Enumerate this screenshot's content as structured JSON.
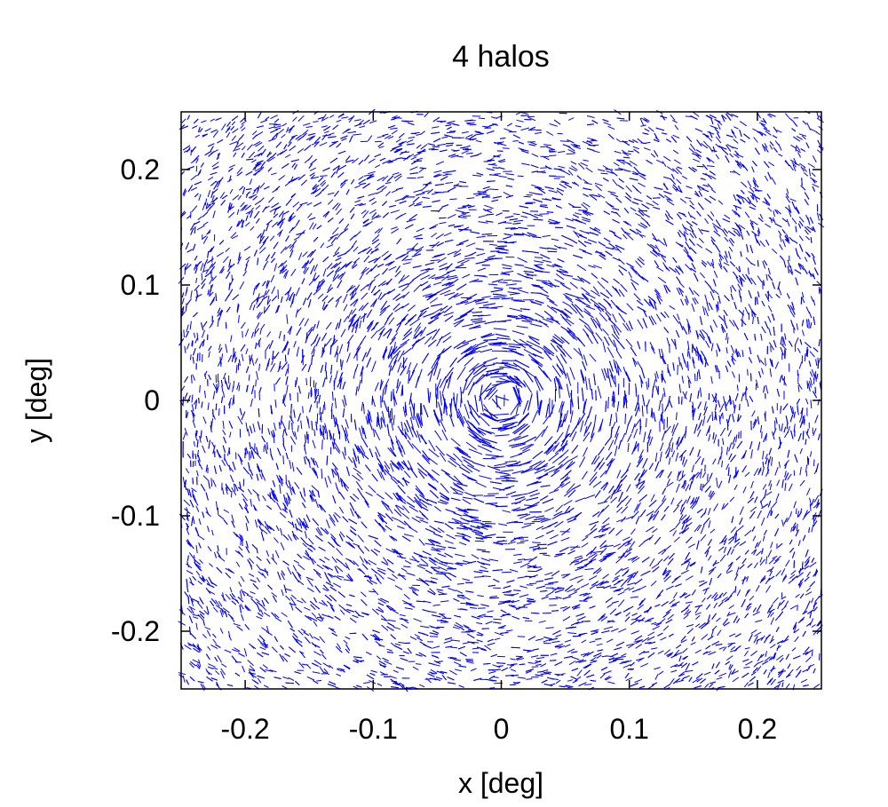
{
  "chart_data": {
    "type": "scatter",
    "title": "4 halos",
    "xlabel": "x [deg]",
    "ylabel": "y [deg]",
    "xlim": [
      -0.25,
      0.25
    ],
    "ylim": [
      -0.25,
      0.25
    ],
    "x_ticks": [
      -0.2,
      -0.1,
      0,
      0.1,
      0.2
    ],
    "y_ticks": [
      -0.2,
      -0.1,
      0,
      0.1,
      0.2
    ],
    "x_tick_labels": [
      "-0.2",
      "-0.1",
      "0",
      "0.1",
      "0.2"
    ],
    "y_tick_labels": [
      "-0.2",
      "-0.1",
      "0",
      "0.1",
      "0.2"
    ],
    "grid": false,
    "series": [
      {
        "mark": "shear-whisker",
        "color": "#0000ff",
        "whisker_count": 9000,
        "center": [
          0,
          0
        ],
        "pattern": "tangential"
      }
    ]
  }
}
